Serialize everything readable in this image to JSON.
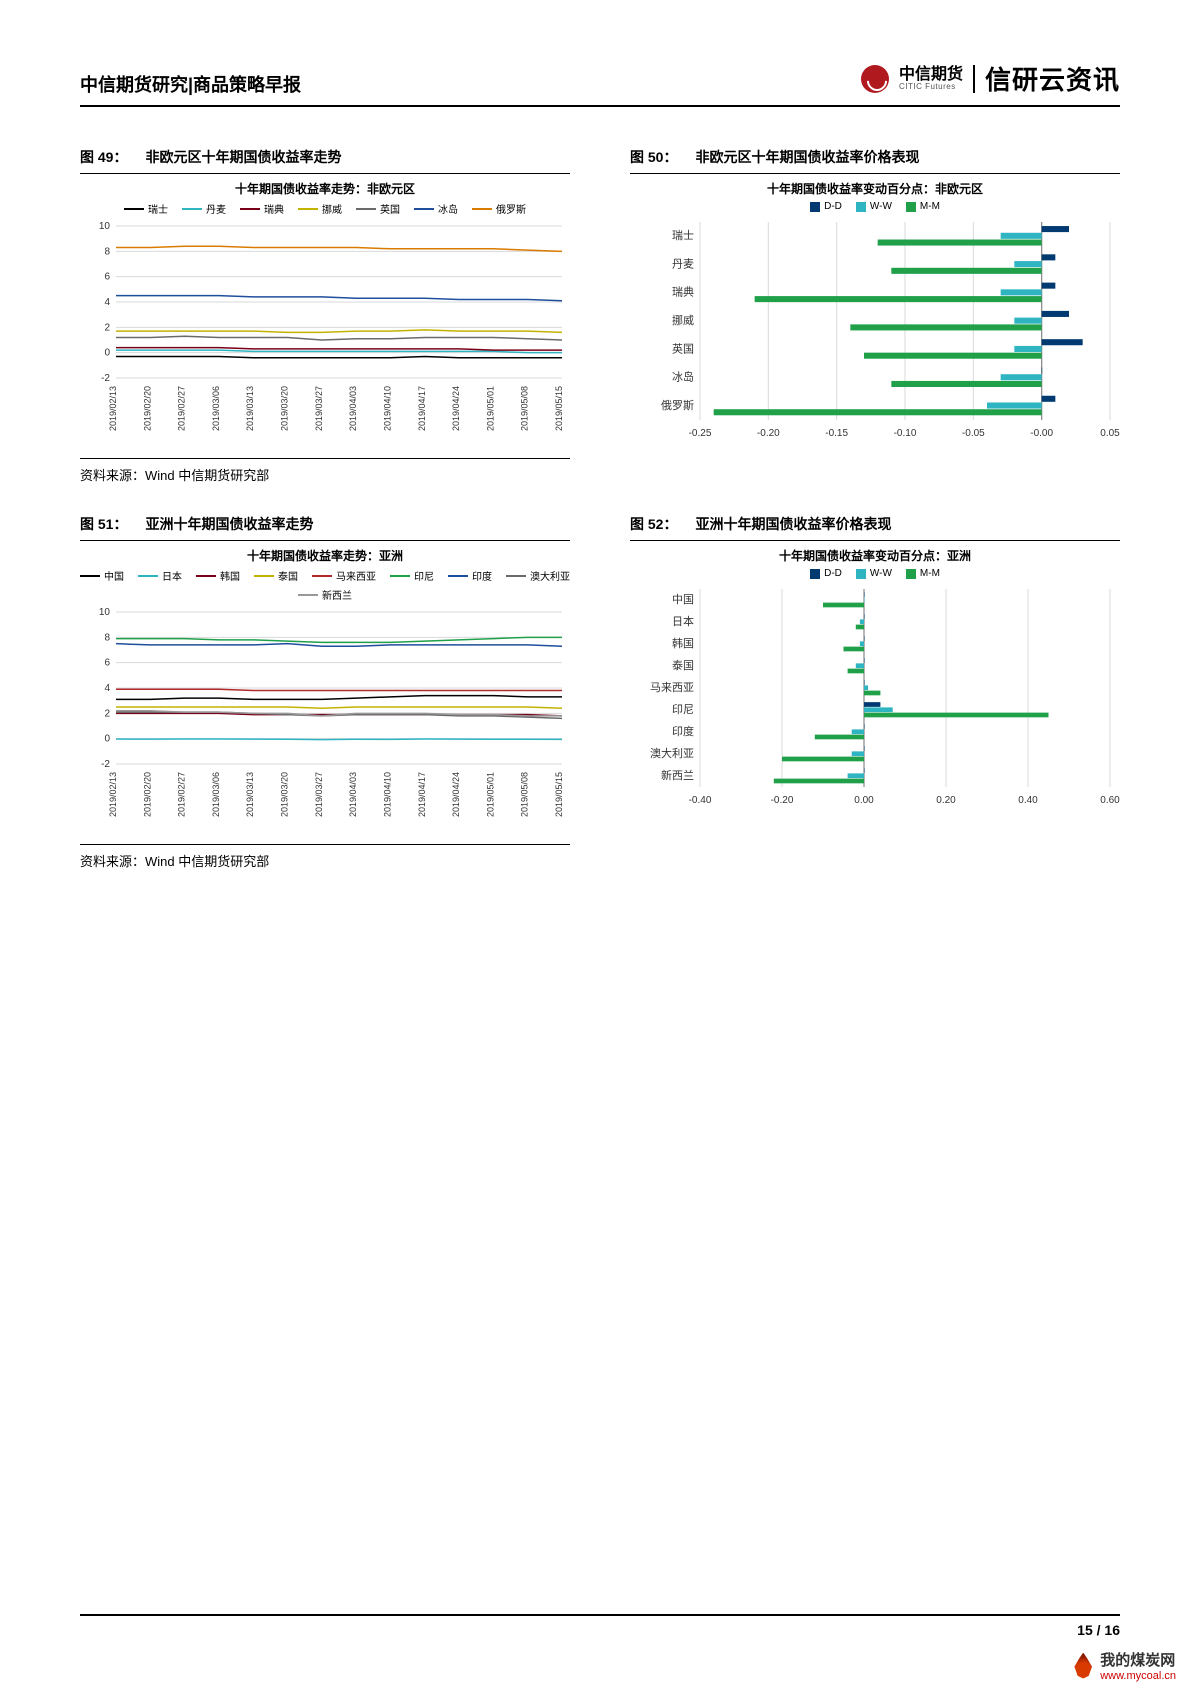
{
  "header": {
    "title": "中信期货研究|商品策略早报",
    "brand_cn": "中信期货",
    "brand_en": "CITIC Futures",
    "product": "信研云资讯",
    "logo_color": "#b0191e"
  },
  "source_line": "资料来源：Wind 中信期货研究部",
  "page_number": "15 / 16",
  "watermark": {
    "text": "我的煤炭网",
    "url": "www.mycoal.cn"
  },
  "x_dates": [
    "2019/02/13",
    "2019/02/20",
    "2019/02/27",
    "2019/03/06",
    "2019/03/13",
    "2019/03/20",
    "2019/03/27",
    "2019/04/03",
    "2019/04/10",
    "2019/04/17",
    "2019/04/24",
    "2019/05/01",
    "2019/05/08",
    "2019/05/15"
  ],
  "fig49": {
    "caption_num": "图 49：",
    "caption": "非欧元区十年期国债收益率走势",
    "title": "十年期国债收益率走势：非欧元区",
    "ylim": [
      -2,
      10
    ],
    "ytick_step": 2,
    "grid_color": "#d9d9d9",
    "series": [
      {
        "name": "瑞士",
        "color": "#000000",
        "values": [
          -0.3,
          -0.3,
          -0.3,
          -0.3,
          -0.4,
          -0.4,
          -0.4,
          -0.4,
          -0.4,
          -0.3,
          -0.4,
          -0.4,
          -0.4,
          -0.4
        ]
      },
      {
        "name": "丹麦",
        "color": "#2fb4c2",
        "values": [
          0.2,
          0.2,
          0.2,
          0.2,
          0.1,
          0.1,
          0.1,
          0.1,
          0.1,
          0.1,
          0.1,
          0.1,
          0.0,
          0.0
        ]
      },
      {
        "name": "瑞典",
        "color": "#7a0019",
        "values": [
          0.4,
          0.4,
          0.4,
          0.4,
          0.3,
          0.3,
          0.3,
          0.3,
          0.3,
          0.3,
          0.3,
          0.2,
          0.2,
          0.2
        ]
      },
      {
        "name": "挪威",
        "color": "#c2b300",
        "values": [
          1.7,
          1.7,
          1.7,
          1.7,
          1.7,
          1.6,
          1.6,
          1.7,
          1.7,
          1.8,
          1.7,
          1.7,
          1.7,
          1.6
        ]
      },
      {
        "name": "英国",
        "color": "#6a6a6a",
        "values": [
          1.2,
          1.2,
          1.3,
          1.2,
          1.2,
          1.2,
          1.0,
          1.1,
          1.1,
          1.2,
          1.2,
          1.2,
          1.1,
          1.0
        ]
      },
      {
        "name": "冰岛",
        "color": "#1f4e9c",
        "values": [
          4.5,
          4.5,
          4.5,
          4.5,
          4.4,
          4.4,
          4.4,
          4.3,
          4.3,
          4.3,
          4.2,
          4.2,
          4.2,
          4.1
        ]
      },
      {
        "name": "俄罗斯",
        "color": "#d97b00",
        "values": [
          8.3,
          8.3,
          8.4,
          8.4,
          8.3,
          8.3,
          8.3,
          8.3,
          8.2,
          8.2,
          8.2,
          8.2,
          8.1,
          8.0
        ]
      }
    ]
  },
  "fig50": {
    "caption_num": "图 50：",
    "caption": "非欧元区十年期国债收益率价格表现",
    "title": "十年期国债收益率变动百分点：非欧元区",
    "xlim": [
      -0.25,
      0.05
    ],
    "xtick_step": 0.05,
    "legend": [
      {
        "name": "D-D",
        "color": "#003a70"
      },
      {
        "name": "W-W",
        "color": "#2fb4c2"
      },
      {
        "name": "M-M",
        "color": "#21a04a"
      }
    ],
    "categories": [
      "瑞士",
      "丹麦",
      "瑞典",
      "挪威",
      "英国",
      "冰岛",
      "俄罗斯"
    ],
    "data": {
      "D-D": [
        0.02,
        0.01,
        0.01,
        0.02,
        0.03,
        0.0,
        0.01
      ],
      "W-W": [
        -0.03,
        -0.02,
        -0.03,
        -0.02,
        -0.02,
        -0.03,
        -0.04
      ],
      "M-M": [
        -0.12,
        -0.11,
        -0.21,
        -0.14,
        -0.13,
        -0.11,
        -0.24
      ]
    }
  },
  "fig51": {
    "caption_num": "图 51：",
    "caption": "亚洲十年期国债收益率走势",
    "title": "十年期国债收益率走势：亚洲",
    "ylim": [
      -2,
      10
    ],
    "ytick_step": 2,
    "grid_color": "#d9d9d9",
    "series": [
      {
        "name": "中国",
        "color": "#000000",
        "values": [
          3.1,
          3.1,
          3.2,
          3.2,
          3.1,
          3.1,
          3.1,
          3.2,
          3.3,
          3.4,
          3.4,
          3.4,
          3.3,
          3.3
        ]
      },
      {
        "name": "日本",
        "color": "#2fb4c2",
        "values": [
          -0.03,
          -0.04,
          -0.03,
          -0.03,
          -0.04,
          -0.05,
          -0.08,
          -0.05,
          -0.06,
          -0.03,
          -0.04,
          -0.05,
          -0.05,
          -0.06
        ]
      },
      {
        "name": "韩国",
        "color": "#7a0019",
        "values": [
          2.0,
          2.0,
          2.0,
          2.0,
          1.9,
          1.9,
          1.9,
          1.9,
          1.9,
          1.9,
          1.9,
          1.9,
          1.9,
          1.8
        ]
      },
      {
        "name": "泰国",
        "color": "#c2b300",
        "values": [
          2.5,
          2.5,
          2.5,
          2.5,
          2.5,
          2.5,
          2.4,
          2.5,
          2.5,
          2.5,
          2.5,
          2.5,
          2.5,
          2.4
        ]
      },
      {
        "name": "马来西亚",
        "color": "#b02a2a",
        "values": [
          3.9,
          3.9,
          3.9,
          3.9,
          3.8,
          3.8,
          3.8,
          3.8,
          3.8,
          3.8,
          3.8,
          3.8,
          3.8,
          3.8
        ]
      },
      {
        "name": "印尼",
        "color": "#21a04a",
        "values": [
          7.9,
          7.9,
          7.9,
          7.8,
          7.8,
          7.7,
          7.6,
          7.6,
          7.6,
          7.7,
          7.8,
          7.9,
          8.0,
          8.0
        ]
      },
      {
        "name": "印度",
        "color": "#1f4e9c",
        "values": [
          7.5,
          7.4,
          7.4,
          7.4,
          7.4,
          7.5,
          7.3,
          7.3,
          7.4,
          7.4,
          7.4,
          7.4,
          7.4,
          7.3
        ]
      },
      {
        "name": "澳大利亚",
        "color": "#6a6a6a",
        "values": [
          2.1,
          2.1,
          2.1,
          2.1,
          2.0,
          1.9,
          1.8,
          1.9,
          1.9,
          1.9,
          1.8,
          1.8,
          1.7,
          1.6
        ]
      },
      {
        "name": "新西兰",
        "color": "#999999",
        "values": [
          2.2,
          2.2,
          2.1,
          2.1,
          2.0,
          2.0,
          1.8,
          2.0,
          2.0,
          2.0,
          1.9,
          1.9,
          1.8,
          1.8
        ]
      }
    ]
  },
  "fig52": {
    "caption_num": "图 52：",
    "caption": "亚洲十年期国债收益率价格表现",
    "title": "十年期国债收益率变动百分点：亚洲",
    "xlim": [
      -0.4,
      0.6
    ],
    "xtick_step": 0.2,
    "legend": [
      {
        "name": "D-D",
        "color": "#003a70"
      },
      {
        "name": "W-W",
        "color": "#2fb4c2"
      },
      {
        "name": "M-M",
        "color": "#21a04a"
      }
    ],
    "categories": [
      "中国",
      "日本",
      "韩国",
      "泰国",
      "马来西亚",
      "印尼",
      "印度",
      "澳大利亚",
      "新西兰"
    ],
    "data": {
      "D-D": [
        0.0,
        0.0,
        0.0,
        0.0,
        0.0,
        0.04,
        0.0,
        0.0,
        0.0
      ],
      "W-W": [
        0.0,
        -0.01,
        -0.01,
        -0.02,
        0.01,
        0.07,
        -0.03,
        -0.03,
        -0.04
      ],
      "M-M": [
        -0.1,
        -0.02,
        -0.05,
        -0.04,
        0.04,
        0.45,
        -0.12,
        -0.2,
        -0.22
      ]
    }
  }
}
